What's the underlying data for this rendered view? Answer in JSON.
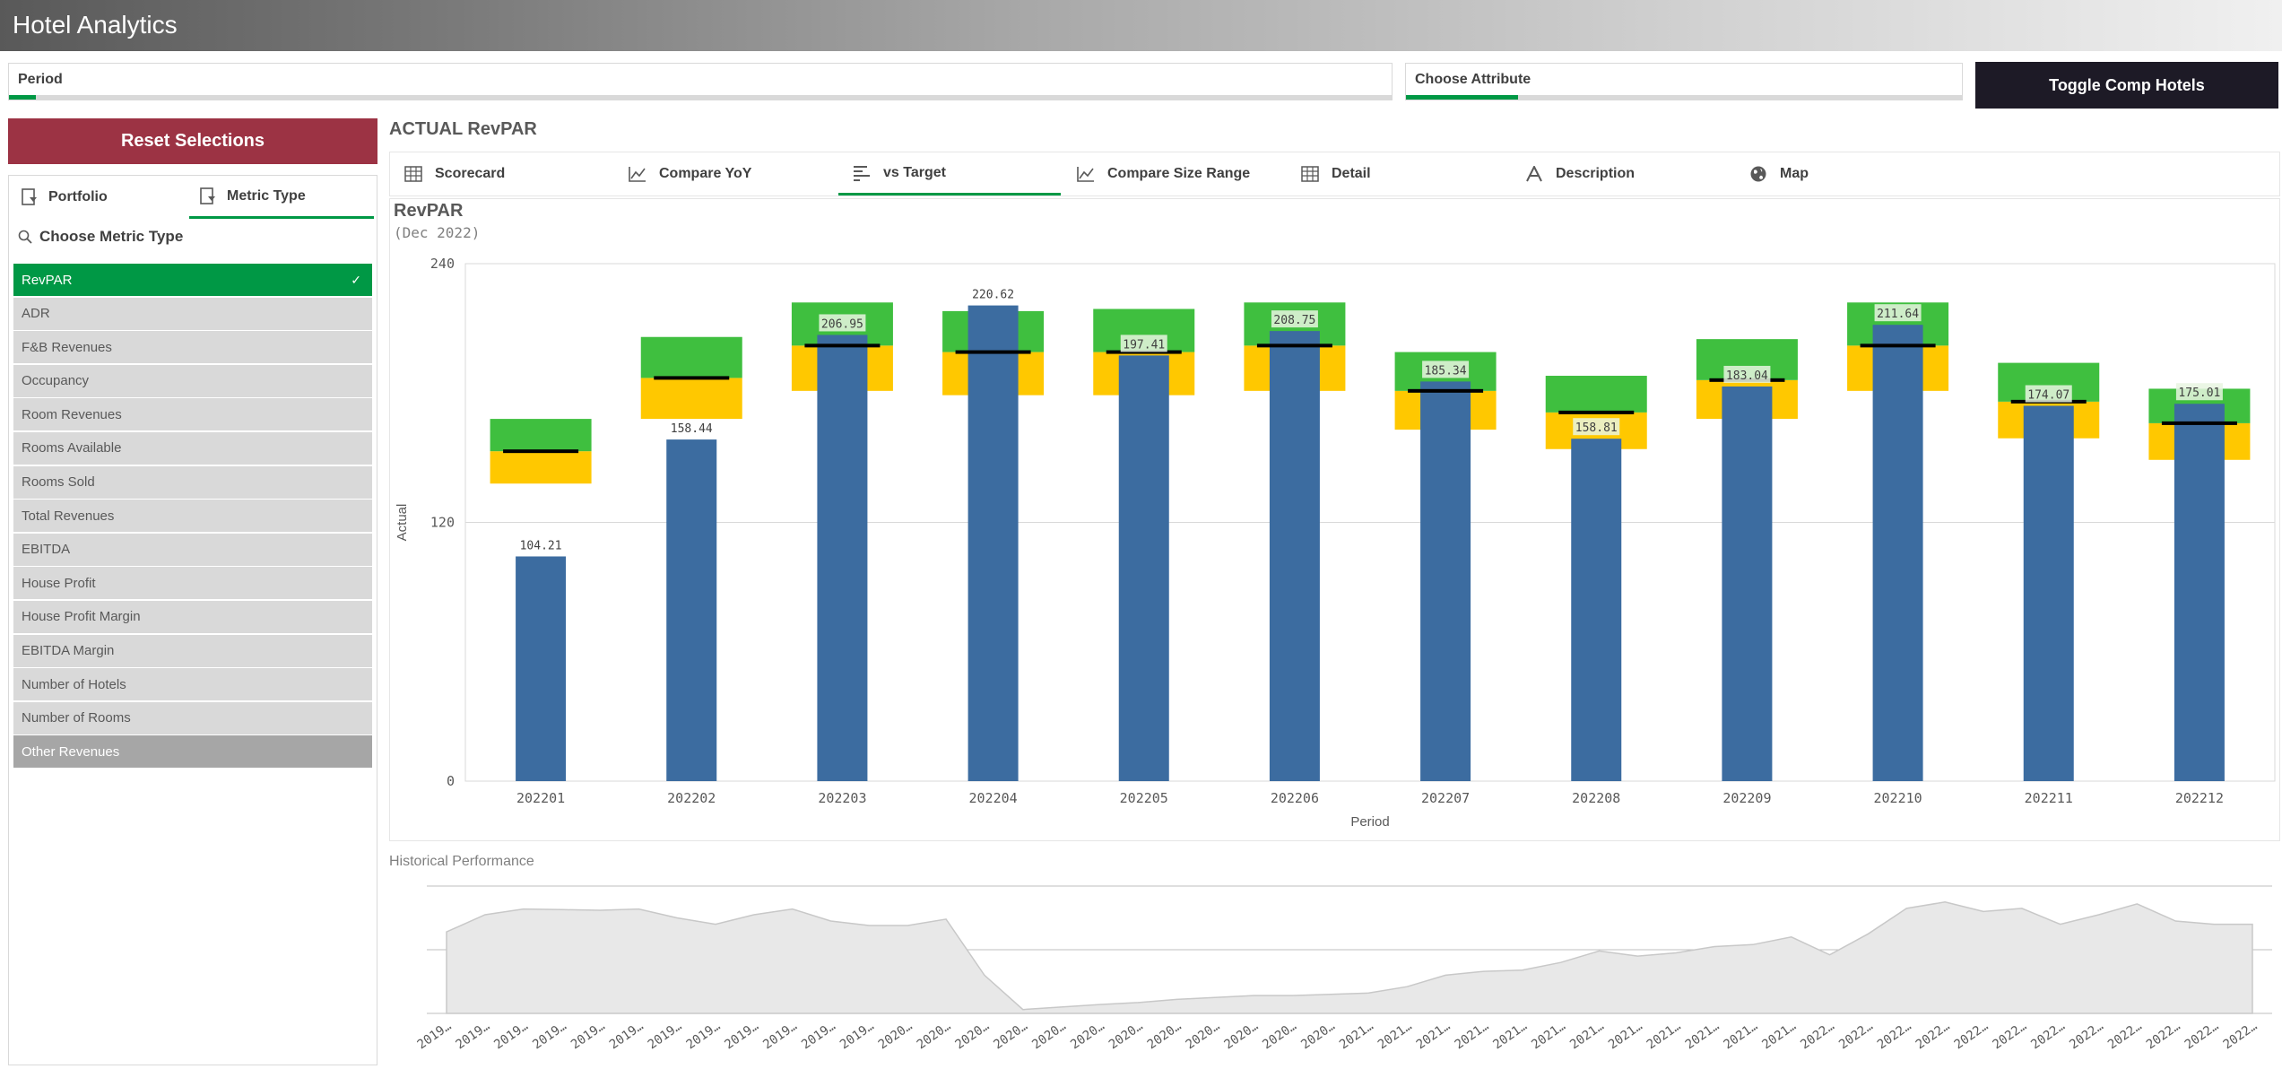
{
  "app": {
    "title": "Hotel Analytics"
  },
  "filters": {
    "period_label": "Period",
    "attribute_label": "Choose Attribute",
    "toggle_label": "Toggle Comp Hotels"
  },
  "sidebar": {
    "reset_label": "Reset Selections",
    "tabs": [
      {
        "label": "Portfolio"
      },
      {
        "label": "Metric Type"
      }
    ],
    "search_label": "Choose Metric Type",
    "items": [
      {
        "label": "RevPAR",
        "state": "selected"
      },
      {
        "label": "ADR",
        "state": "possible"
      },
      {
        "label": "F&B Revenues",
        "state": "possible"
      },
      {
        "label": "Occupancy",
        "state": "possible"
      },
      {
        "label": "Room Revenues",
        "state": "possible"
      },
      {
        "label": "Rooms Available",
        "state": "possible"
      },
      {
        "label": "Rooms Sold",
        "state": "possible"
      },
      {
        "label": "Total Revenues",
        "state": "possible"
      },
      {
        "label": "EBITDA",
        "state": "possible"
      },
      {
        "label": "House Profit",
        "state": "possible"
      },
      {
        "label": "House Profit Margin",
        "state": "possible"
      },
      {
        "label": "EBITDA Margin",
        "state": "possible"
      },
      {
        "label": "Number of Hotels",
        "state": "possible"
      },
      {
        "label": "Number of Rooms",
        "state": "possible"
      },
      {
        "label": "Other Revenues",
        "state": "excluded"
      }
    ],
    "check_glyph": "✓"
  },
  "main": {
    "title": "ACTUAL RevPAR",
    "tabs": [
      {
        "label": "Scorecard",
        "icon": "table-icon"
      },
      {
        "label": "Compare YoY",
        "icon": "line-chart-icon"
      },
      {
        "label": "vs Target",
        "icon": "bullet-chart-icon",
        "active": true
      },
      {
        "label": "Compare Size Range",
        "icon": "line-chart-icon"
      },
      {
        "label": "Detail",
        "icon": "table-icon"
      },
      {
        "label": "Description",
        "icon": "text-icon"
      },
      {
        "label": "Map",
        "icon": "globe-icon"
      }
    ],
    "chart_title": "RevPAR",
    "chart_subtitle": "(Dec 2022)",
    "history_title": "Historical Performance"
  },
  "colors": {
    "bar": "#3c6ca0",
    "range_low": "#ffc800",
    "range_high": "#3fbf3f",
    "marker": "#000000",
    "accent": "#009845",
    "reset": "#9c3344",
    "toggle": "#1d1a26"
  },
  "chart_data": [
    {
      "type": "bar",
      "subtype": "bullet",
      "title": "RevPAR",
      "subtitle": "(Dec 2022)",
      "xlabel": "Period",
      "ylabel": "Actual",
      "ylim": [
        0,
        240
      ],
      "yticks": [
        0,
        120,
        240
      ],
      "grid": true,
      "categories": [
        "202201",
        "202202",
        "202203",
        "202204",
        "202205",
        "202206",
        "202207",
        "202208",
        "202209",
        "202210",
        "202211",
        "202212"
      ],
      "actual": [
        104.21,
        158.44,
        206.95,
        220.62,
        197.41,
        208.75,
        185.34,
        158.81,
        183.04,
        211.64,
        174.07,
        175.01
      ],
      "labels": [
        "104.21",
        "158.44",
        "206.95",
        "220.62",
        "197.41",
        "208.75",
        "185.34",
        "158.81",
        "183.04",
        "211.64",
        "174.07",
        "175.01"
      ],
      "target": [
        153,
        187,
        202,
        199,
        199,
        202,
        181,
        171,
        186,
        202,
        176,
        166
      ],
      "range_low": [
        138,
        168,
        181,
        179,
        179,
        181,
        163,
        154,
        168,
        181,
        159,
        149
      ],
      "range_mid": [
        153,
        187,
        202,
        199,
        199,
        202,
        181,
        171,
        186,
        202,
        176,
        166
      ],
      "range_high": [
        168,
        206,
        222,
        218,
        219,
        222,
        199,
        188,
        205,
        222,
        194,
        182
      ]
    },
    {
      "type": "area",
      "title": "Historical Performance",
      "x": [
        "2019…",
        "2019…",
        "2019…",
        "2019…",
        "2019…",
        "2019…",
        "2019…",
        "2019…",
        "2019…",
        "2019…",
        "2019…",
        "2019…",
        "2020…",
        "2020…",
        "2020…",
        "2020…",
        "2020…",
        "2020…",
        "2020…",
        "2020…",
        "2020…",
        "2020…",
        "2020…",
        "2020…",
        "2021…",
        "2021…",
        "2021…",
        "2021…",
        "2021…",
        "2021…",
        "2021…",
        "2021…",
        "2021…",
        "2021…",
        "2021…",
        "2021…",
        "2022…",
        "2022…",
        "2022…",
        "2022…",
        "2022…",
        "2022…",
        "2022…",
        "2022…",
        "2022…",
        "2022…",
        "2022…",
        "2022…"
      ],
      "values": [
        128,
        155,
        164,
        163,
        162,
        164,
        150,
        140,
        155,
        164,
        145,
        138,
        138,
        148,
        60,
        6,
        10,
        14,
        17,
        22,
        25,
        28,
        28,
        30,
        32,
        42,
        60,
        66,
        68,
        80,
        98,
        90,
        95,
        105,
        108,
        120,
        92,
        125,
        165,
        175,
        160,
        165,
        140,
        155,
        172,
        145,
        140,
        140
      ],
      "ylim": [
        0,
        200
      ],
      "grid": true
    }
  ]
}
